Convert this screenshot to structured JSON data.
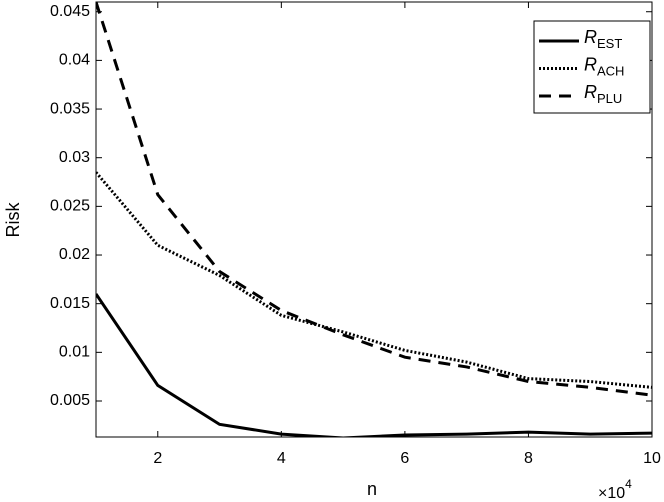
{
  "chart_data": {
    "type": "line",
    "xlabel": "n",
    "ylabel": "Risk",
    "x_multiplier": {
      "base": "×10",
      "exponent": "4"
    },
    "x": [
      1,
      2,
      3,
      4,
      5,
      6,
      7,
      8,
      9,
      10
    ],
    "xlim": [
      1,
      10
    ],
    "xticks": [
      2,
      4,
      6,
      8,
      10
    ],
    "ylim": [
      0.0013,
      0.046
    ],
    "yticks": [
      0.005,
      0.01,
      0.015,
      0.02,
      0.025,
      0.03,
      0.035,
      0.04,
      0.045
    ],
    "grid": false,
    "legend": "upper right",
    "series": [
      {
        "name": "R",
        "subscript": "EST",
        "color": "#000000",
        "dash": "solid",
        "values": [
          0.016,
          0.0066,
          0.0026,
          0.0016,
          0.0012,
          0.0015,
          0.0016,
          0.0018,
          0.0016,
          0.0017
        ]
      },
      {
        "name": "R",
        "subscript": "ACH",
        "color": "#000000",
        "dash": "dotted",
        "values": [
          0.0285,
          0.021,
          0.0179,
          0.0138,
          0.0121,
          0.0102,
          0.009,
          0.0073,
          0.007,
          0.0064
        ]
      },
      {
        "name": "R",
        "subscript": "PLU",
        "color": "#000000",
        "dash": "dashed",
        "values": [
          0.046,
          0.0262,
          0.0183,
          0.0143,
          0.0118,
          0.0095,
          0.0085,
          0.007,
          0.0064,
          0.0056
        ]
      }
    ]
  }
}
